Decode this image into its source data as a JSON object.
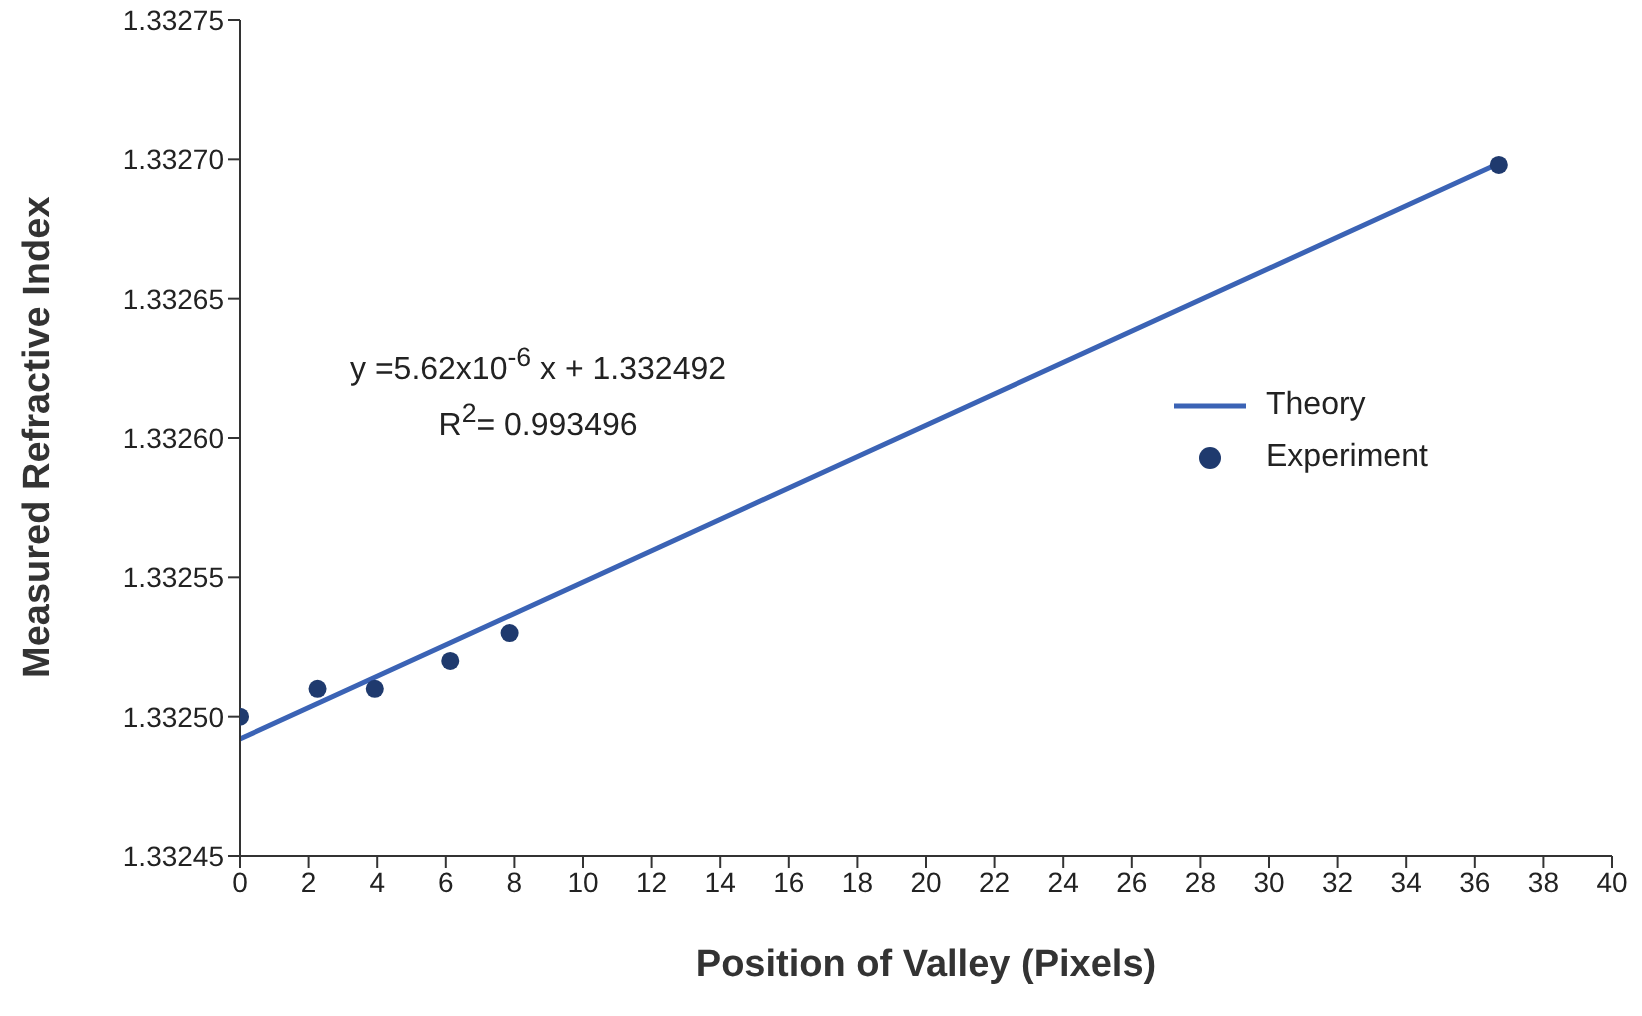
{
  "chart_data": {
    "type": "scatter",
    "xlabel": "Position of  Valley (Pixels)",
    "ylabel": "Measured Refractive Index",
    "xlim": [
      0,
      40
    ],
    "xticks": [
      0,
      2,
      4,
      6,
      8,
      10,
      12,
      14,
      16,
      18,
      20,
      22,
      24,
      26,
      28,
      30,
      32,
      34,
      36,
      38,
      40
    ],
    "ylim": [
      1.33245,
      1.33275
    ],
    "yticks": [
      1.33245,
      {
        "value": 1.3325,
        "label": "1.33250"
      },
      1.33255,
      {
        "value": 1.3326,
        "label": "1.33260"
      },
      1.33265,
      {
        "value": 1.3327,
        "label": "1.33270"
      },
      1.33275
    ],
    "series": [
      {
        "name": "Theory",
        "type": "line",
        "color": "#3b63b5",
        "x": [
          0,
          36.6
        ],
        "values": [
          1.332492,
          1.332698
        ]
      },
      {
        "name": "Experiment",
        "marker": "circle",
        "color": "#1f3a6e",
        "x": [
          0,
          2.26,
          3.93,
          6.13,
          7.86,
          36.7
        ],
        "values": [
          1.3325,
          1.33251,
          1.33251,
          1.33252,
          1.33253,
          1.332698
        ]
      }
    ],
    "annotations": [
      "y =5.62x10$^{-6}$ x + 1.332492",
      "R$^{2}$= 0.993496"
    ],
    "line_style": "solid",
    "legend": "right"
  }
}
